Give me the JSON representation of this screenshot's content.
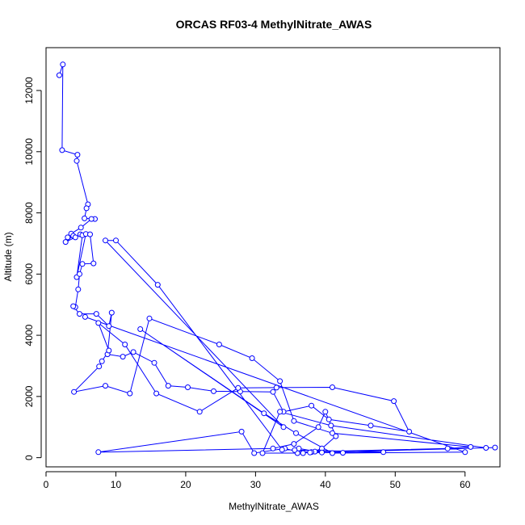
{
  "chart_data": {
    "type": "scatter",
    "title": "ORCAS RF03-4 MethylNitrate_AWAS",
    "xlabel": "MethylNitrate_AWAS",
    "ylabel": "Altitude (m)",
    "xlim": [
      0,
      65
    ],
    "ylim": [
      -300,
      13400
    ],
    "x_ticks": [
      0,
      10,
      20,
      30,
      40,
      50,
      60
    ],
    "y_ticks": [
      0,
      2000,
      4000,
      6000,
      8000,
      10000,
      12000
    ],
    "grid": false,
    "legend": "none",
    "connected": true,
    "colors": {
      "series": "#0000ff",
      "frame": "#000000"
    },
    "series": [
      {
        "x": [
          1.9,
          2.4,
          2.3,
          4.5,
          4.4,
          6.0,
          5.8,
          5.5,
          7.0,
          6.5,
          5.0,
          3.6,
          3.1,
          3.9,
          2.8,
          4.2,
          4.9,
          5.2,
          4.4,
          5.7,
          6.3,
          6.8,
          5.2,
          4.8,
          4.6,
          4.2,
          3.9,
          4.8,
          7.2,
          9.0,
          9.4,
          8.8,
          11.0,
          12.5,
          15.5,
          17.5,
          20.3,
          24.0,
          27.8,
          32.5,
          34.0,
          38.0,
          40.5,
          46.5,
          52.0,
          49.8,
          41.0,
          33.0,
          27.5,
          22.0,
          15.8,
          11.3,
          7.5,
          9.0,
          8.0,
          7.6,
          4.0,
          8.5,
          12.0,
          14.8,
          24.8,
          29.5,
          33.5,
          35.5,
          41.0,
          60.8,
          57.5,
          38.5,
          36.8,
          34.2,
          29.8,
          28.0,
          7.5,
          32.5,
          35.5,
          39.0,
          40.0,
          41.5,
          39.5,
          38.0,
          36.0,
          31.0,
          33.5,
          40.8,
          63.0,
          64.3,
          39.5,
          36.2,
          35.6,
          37.8,
          42.5,
          48.3,
          33.8,
          16.0,
          10.0,
          8.5,
          34.0,
          13.5,
          31.2,
          35.8,
          41.0,
          60.0,
          5.6
        ],
        "y": [
          12500,
          12850,
          10050,
          9900,
          9700,
          8280,
          8150,
          7820,
          7800,
          7800,
          7520,
          7320,
          7200,
          7250,
          7050,
          7200,
          7300,
          7270,
          5900,
          7310,
          7300,
          6350,
          6330,
          6000,
          5500,
          4920,
          4950,
          4700,
          4700,
          4300,
          4740,
          3380,
          3300,
          3450,
          3100,
          2350,
          2300,
          2170,
          2160,
          2150,
          1500,
          1700,
          1250,
          1050,
          850,
          1850,
          2300,
          2290,
          2280,
          1500,
          2100,
          3700,
          4400,
          3500,
          3150,
          2980,
          2150,
          2350,
          2100,
          4550,
          3700,
          3250,
          2500,
          1200,
          800,
          350,
          300,
          200,
          150,
          300,
          150,
          850,
          180,
          300,
          450,
          1000,
          1500,
          700,
          300,
          180,
          150,
          150,
          1500,
          1050,
          320,
          330,
          170,
          300,
          250,
          170,
          160,
          180,
          260,
          5650,
          7100,
          7100,
          1000,
          4200,
          1450,
          800,
          150,
          180,
          4600
        ]
      }
    ]
  }
}
